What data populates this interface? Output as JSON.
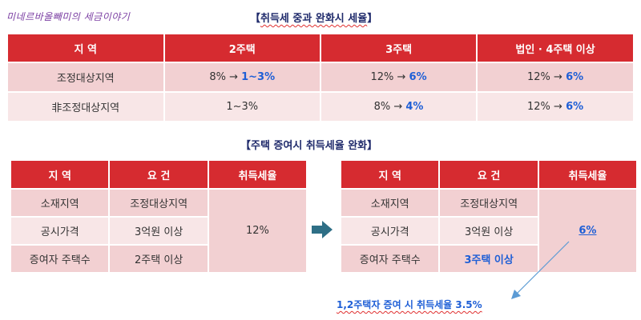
{
  "brand": "미네르바올빼미의 세금이야기",
  "top_section": {
    "title_open": "【",
    "title_main": "취득세 중과 완화시 세율",
    "title_close": "】",
    "headers": [
      "지 역",
      "2주택",
      "3주택",
      "법인 · 4주택 이상"
    ],
    "rows": [
      {
        "region": "조정대상지역",
        "cells": [
          {
            "before": "8% → ",
            "after": "1~3%"
          },
          {
            "before": "12% → ",
            "after": "6%"
          },
          {
            "before": "12% → ",
            "after": "6%"
          }
        ]
      },
      {
        "region": "非조정대상지역",
        "cells": [
          {
            "before": "1~3%",
            "after": ""
          },
          {
            "before": "8% → ",
            "after": "4%"
          },
          {
            "before": "12% → ",
            "after": "6%"
          }
        ]
      }
    ]
  },
  "gift_section": {
    "title": "【주택 증여시 취득세율 완화】",
    "left_table": {
      "headers": [
        "지 역",
        "요 건",
        "취득세율"
      ],
      "rows": [
        {
          "label": "소재지역",
          "value": "조정대상지역"
        },
        {
          "label": "공시가격",
          "value": "3억원 이상"
        },
        {
          "label": "증여자 주택수",
          "value": "2주택 이상"
        }
      ],
      "rate": "12%"
    },
    "right_table": {
      "headers": [
        "지 역",
        "요 건",
        "취득세율"
      ],
      "rows": [
        {
          "label": "소재지역",
          "value": "조정대상지역"
        },
        {
          "label": "공시가격",
          "value": "3억원 이상"
        },
        {
          "label": "증여자 주택수",
          "value": "3주택 이상"
        }
      ],
      "rate": "6%"
    },
    "note": "1,2주택자 증여 시 취득세율 3.5%"
  },
  "colors": {
    "header_red": "#d62b30",
    "row_pink": "#f2d0d2",
    "row_light_pink": "#f8e6e7",
    "highlight_blue": "#1f5fd6",
    "arrow_teal": "#2e6f86"
  }
}
